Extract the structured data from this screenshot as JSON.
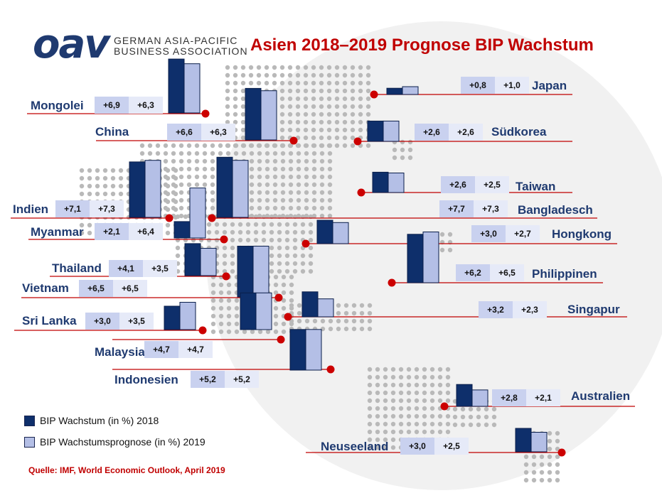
{
  "title": "Asien 2018–2019 Prognose BIP Wachstum",
  "logo": {
    "word": "oav",
    "line1": "GERMAN ASIA-PACIFIC",
    "line2": "BUSINESS ASSOCIATION"
  },
  "legend": {
    "y2018": "BIP Wachstum (in %) 2018",
    "y2019": "BIP Wachstumsprognose (in %) 2019"
  },
  "source": "Quelle: IMF, World Economic Outlook, April 2019",
  "colors": {
    "bar2018": "#0e2f6b",
    "bar2019": "#b4bfe6",
    "accent": "#c00000",
    "label": "#1f3a70"
  },
  "chart_data": {
    "type": "bar",
    "title": "Asien 2018–2019 Prognose BIP Wachstum",
    "series_names": [
      "BIP Wachstum (in %) 2018",
      "BIP Wachstumsprognose (in %) 2019"
    ],
    "countries": [
      {
        "name": "Mongolei",
        "v2018": 6.9,
        "v2019": 6.3,
        "t2018": "+6,9",
        "t2019": "+6,3"
      },
      {
        "name": "China",
        "v2018": 6.6,
        "v2019": 6.3,
        "t2018": "+6,6",
        "t2019": "+6,3"
      },
      {
        "name": "Indien",
        "v2018": 7.1,
        "v2019": 7.3,
        "t2018": "+7,1",
        "t2019": "+7,3"
      },
      {
        "name": "Myanmar",
        "v2018": 2.1,
        "v2019": 6.4,
        "t2018": "+2,1",
        "t2019": "+6,4"
      },
      {
        "name": "Thailand",
        "v2018": 4.1,
        "v2019": 3.5,
        "t2018": "+4,1",
        "t2019": "+3,5"
      },
      {
        "name": "Vietnam",
        "v2018": 6.5,
        "v2019": 6.5,
        "t2018": "+6,5",
        "t2019": "+6,5"
      },
      {
        "name": "Sri Lanka",
        "v2018": 3.0,
        "v2019": 3.5,
        "t2018": "+3,0",
        "t2019": "+3,5"
      },
      {
        "name": "Malaysia",
        "v2018": 4.7,
        "v2019": 4.7,
        "t2018": "+4,7",
        "t2019": "+4,7"
      },
      {
        "name": "Indonesien",
        "v2018": 5.2,
        "v2019": 5.2,
        "t2018": "+5,2",
        "t2019": "+5,2"
      },
      {
        "name": "Japan",
        "v2018": 0.8,
        "v2019": 1.0,
        "t2018": "+0,8",
        "t2019": "+1,0"
      },
      {
        "name": "Südkorea",
        "v2018": 2.6,
        "v2019": 2.6,
        "t2018": "+2,6",
        "t2019": "+2,6"
      },
      {
        "name": "Taiwan",
        "v2018": 2.6,
        "v2019": 2.5,
        "t2018": "+2,6",
        "t2019": "+2,5"
      },
      {
        "name": "Bangladesch",
        "v2018": 7.7,
        "v2019": 7.3,
        "t2018": "+7,7",
        "t2019": "+7,3"
      },
      {
        "name": "Hongkong",
        "v2018": 3.0,
        "v2019": 2.7,
        "t2018": "+3,0",
        "t2019": "+2,7"
      },
      {
        "name": "Philippinen",
        "v2018": 6.2,
        "v2019": 6.5,
        "t2018": "+6,2",
        "t2019": "+6,5"
      },
      {
        "name": "Singapur",
        "v2018": 3.2,
        "v2019": 2.3,
        "t2018": "+3,2",
        "t2019": "+2,3"
      },
      {
        "name": "Australien",
        "v2018": 2.8,
        "v2019": 2.1,
        "t2018": "+2,8",
        "t2019": "+2,1"
      },
      {
        "name": "Neuseeland",
        "v2018": 3.0,
        "v2019": 2.5,
        "t2018": "+3,0",
        "t2019": "+2,5"
      }
    ]
  }
}
